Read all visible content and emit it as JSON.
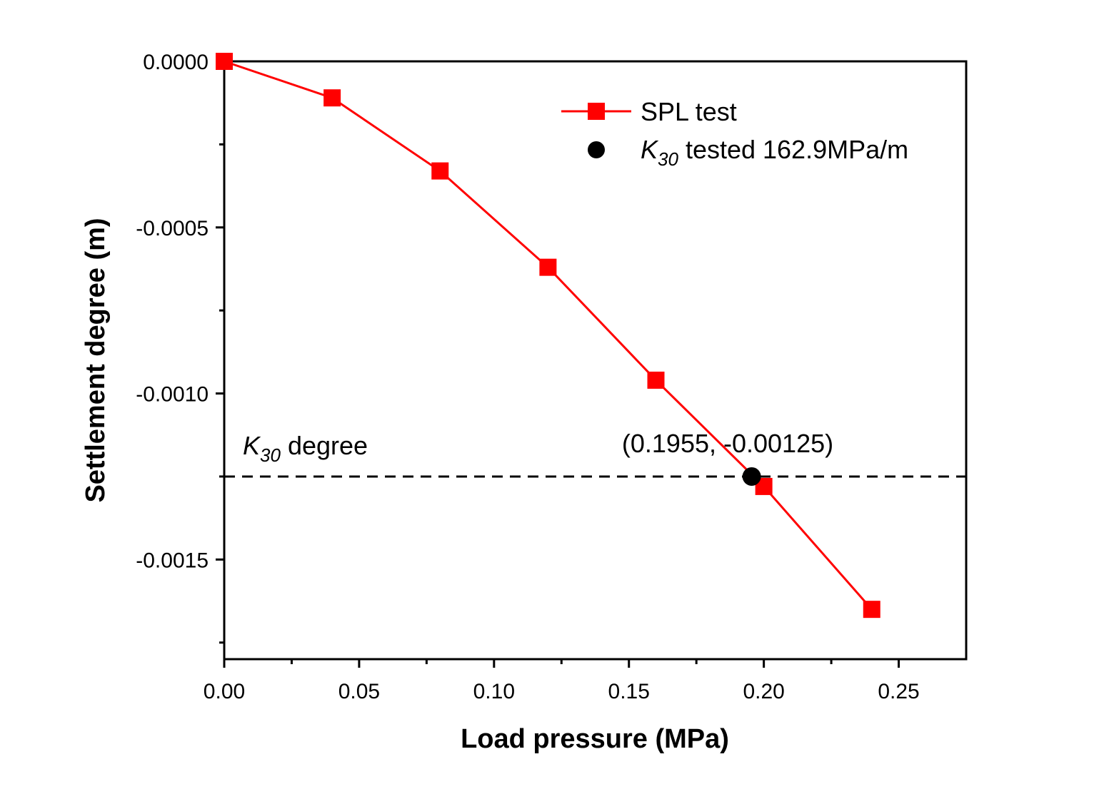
{
  "chart_data": {
    "type": "line",
    "xlabel": "Load pressure (MPa)",
    "ylabel": "Settlement degree (m)",
    "xlim": [
      0,
      0.275
    ],
    "ylim": [
      -0.0018,
      0
    ],
    "x_ticks": [
      0.0,
      0.05,
      0.1,
      0.15,
      0.2,
      0.25
    ],
    "x_tick_labels": [
      "0.00",
      "0.05",
      "0.10",
      "0.15",
      "0.20",
      "0.25"
    ],
    "y_ticks": [
      0,
      -0.0005,
      -0.001,
      -0.0015
    ],
    "y_tick_labels": [
      "0.0000",
      "-0.0005",
      "-0.0010",
      "-0.0015"
    ],
    "x_minor_ticks": [
      0.025,
      0.075,
      0.125,
      0.175,
      0.225
    ],
    "y_minor_ticks": [
      -0.00025,
      -0.00075,
      -0.00125,
      -0.00175
    ],
    "series": [
      {
        "name": "SPL test",
        "color": "#ff0000",
        "marker": "square",
        "x": [
          0.0,
          0.04,
          0.08,
          0.12,
          0.16,
          0.2,
          0.24
        ],
        "y": [
          0.0,
          -0.00011,
          -0.00033,
          -0.00062,
          -0.00096,
          -0.00128,
          -0.00165
        ]
      }
    ],
    "highlight_point": {
      "label_prefix": "K",
      "label_sub": "30",
      "label_suffix": " tested 162.9MPa/m",
      "x": 0.1955,
      "y": -0.00125,
      "color": "#000000",
      "annotation": "(0.1955, -0.00125)"
    },
    "reference_line": {
      "y": -0.00125,
      "style": "dashed",
      "label_prefix": "K",
      "label_sub": "30",
      "label_suffix": " degree"
    },
    "legend_position": "top-right"
  }
}
